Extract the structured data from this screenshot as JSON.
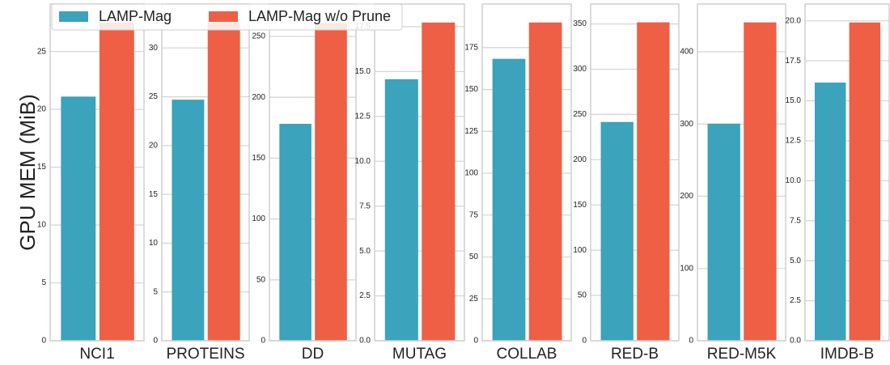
{
  "chart_data": [
    {
      "type": "bar",
      "ylabel": "GPU MEM (MiB)",
      "legend": "upper left",
      "grid": true,
      "categories": [
        "NCI1"
      ],
      "series": [
        {
          "name": "LAMP-Mag",
          "color": "#3ba3bc",
          "values": [
            21.1
          ]
        },
        {
          "name": "LAMP-Mag w/o Prune",
          "color": "#ee5f45",
          "values": [
            27.5
          ]
        }
      ],
      "ylim": [
        0,
        29.1
      ],
      "yticks": [
        0,
        5,
        10,
        15,
        20,
        25
      ]
    },
    {
      "type": "bar",
      "grid": true,
      "categories": [
        "PROTEINS"
      ],
      "series": [
        {
          "name": "LAMP-Mag",
          "color": "#3ba3bc",
          "values": [
            24.7
          ]
        },
        {
          "name": "LAMP-Mag w/o Prune",
          "color": "#ee5f45",
          "values": [
            32.6
          ]
        }
      ],
      "ylim": [
        0,
        34.5
      ],
      "yticks": [
        0,
        5,
        10,
        15,
        20,
        25,
        30
      ]
    },
    {
      "type": "bar",
      "grid": true,
      "categories": [
        "DD"
      ],
      "series": [
        {
          "name": "LAMP-Mag",
          "color": "#3ba3bc",
          "values": [
            178.2
          ]
        },
        {
          "name": "LAMP-Mag w/o Prune",
          "color": "#ee5f45",
          "values": [
            261
          ]
        }
      ],
      "ylim": [
        0,
        276.6
      ],
      "yticks": [
        0,
        50,
        100,
        150,
        200,
        250
      ]
    },
    {
      "type": "bar",
      "grid": true,
      "categories": [
        "MUTAG"
      ],
      "series": [
        {
          "name": "LAMP-Mag",
          "color": "#3ba3bc",
          "values": [
            14.57
          ]
        },
        {
          "name": "LAMP-Mag w/o Prune",
          "color": "#ee5f45",
          "values": [
            17.73
          ]
        }
      ],
      "ylim": [
        0,
        18.76
      ],
      "yticks": [
        {
          "value": 0,
          "label": "0.0"
        },
        2.5,
        {
          "value": 5,
          "label": "5.0"
        },
        7.5,
        {
          "value": 10,
          "label": "10.0"
        },
        12.5,
        {
          "value": 15,
          "label": "15.0"
        },
        17.5
      ]
    },
    {
      "type": "bar",
      "grid": true,
      "categories": [
        "COLLAB"
      ],
      "series": [
        {
          "name": "LAMP-Mag",
          "color": "#3ba3bc",
          "values": [
            168.3
          ]
        },
        {
          "name": "LAMP-Mag w/o Prune",
          "color": "#ee5f45",
          "values": [
            190
          ]
        }
      ],
      "ylim": [
        0,
        201
      ],
      "yticks": [
        0,
        25,
        50,
        75,
        100,
        125,
        150,
        175
      ]
    },
    {
      "type": "bar",
      "grid": true,
      "categories": [
        "RED-B"
      ],
      "series": [
        {
          "name": "LAMP-Mag",
          "color": "#3ba3bc",
          "values": [
            241.7
          ]
        },
        {
          "name": "LAMP-Mag w/o Prune",
          "color": "#ee5f45",
          "values": [
            351.8
          ]
        }
      ],
      "ylim": [
        0,
        372
      ],
      "yticks": [
        0,
        50,
        100,
        150,
        200,
        250,
        300,
        350
      ]
    },
    {
      "type": "bar",
      "grid": true,
      "categories": [
        "RED-M5K"
      ],
      "series": [
        {
          "name": "LAMP-Mag",
          "color": "#3ba3bc",
          "values": [
            300.4
          ]
        },
        {
          "name": "LAMP-Mag w/o Prune",
          "color": "#ee5f45",
          "values": [
            440.6
          ]
        }
      ],
      "ylim": [
        0,
        466
      ],
      "yticks": [
        0,
        100,
        200,
        300,
        400
      ]
    },
    {
      "type": "bar",
      "grid": true,
      "categories": [
        "IMDB-B"
      ],
      "series": [
        {
          "name": "LAMP-Mag",
          "color": "#3ba3bc",
          "values": [
            16.14
          ]
        },
        {
          "name": "LAMP-Mag w/o Prune",
          "color": "#ee5f45",
          "values": [
            19.9
          ]
        }
      ],
      "ylim": [
        0,
        21.05
      ],
      "yticks": [
        {
          "value": 0,
          "label": "0.0"
        },
        2.5,
        {
          "value": 5,
          "label": "5.0"
        },
        7.5,
        {
          "value": 10,
          "label": "10.0"
        },
        12.5,
        {
          "value": 15,
          "label": "15.0"
        },
        17.5,
        {
          "value": 20,
          "label": "20.0"
        }
      ]
    }
  ]
}
